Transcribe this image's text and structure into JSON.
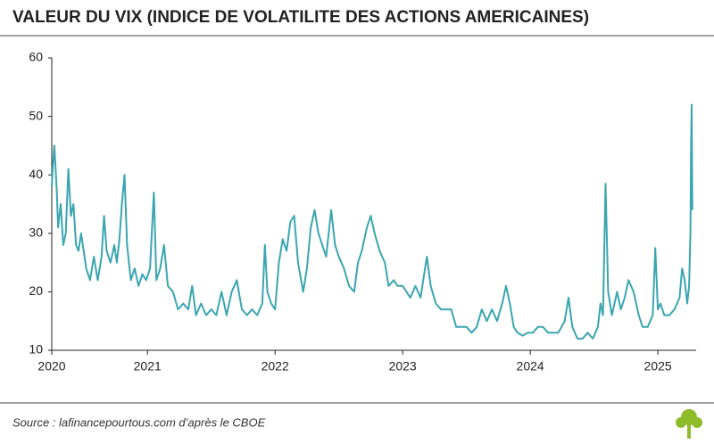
{
  "chart_data": {
    "type": "line",
    "title": "VALEUR DU VIX (INDICE DE VOLATILITE DES ACTIONS AMERICAINES)",
    "source": "Source : lafinancepourtous.com d’après le CBOE",
    "color": "#3ba5b0",
    "xlim": [
      2020.25,
      2025.3
    ],
    "xticks": [
      {
        "value": 2020.25,
        "label": "2020"
      },
      2021,
      2022,
      2023,
      2024,
      2025
    ],
    "ylim": [
      10,
      60
    ],
    "yticks": [
      10,
      20,
      30,
      40,
      50,
      60
    ],
    "grid": false,
    "x": [
      2020.25,
      2020.26,
      2020.27,
      2020.29,
      2020.3,
      2020.32,
      2020.34,
      2020.36,
      2020.38,
      2020.4,
      2020.42,
      2020.44,
      2020.46,
      2020.48,
      2020.52,
      2020.55,
      2020.58,
      2020.61,
      2020.64,
      2020.66,
      2020.68,
      2020.71,
      2020.74,
      2020.76,
      2020.78,
      2020.8,
      2020.82,
      2020.84,
      2020.87,
      2020.9,
      2020.93,
      2020.96,
      2020.99,
      2021.02,
      2021.05,
      2021.07,
      2021.1,
      2021.13,
      2021.16,
      2021.2,
      2021.24,
      2021.28,
      2021.32,
      2021.35,
      2021.38,
      2021.42,
      2021.46,
      2021.5,
      2021.54,
      2021.58,
      2021.62,
      2021.66,
      2021.7,
      2021.74,
      2021.78,
      2021.82,
      2021.86,
      2021.9,
      2021.92,
      2021.94,
      2021.97,
      2022.0,
      2022.03,
      2022.06,
      2022.09,
      2022.12,
      2022.15,
      2022.18,
      2022.22,
      2022.25,
      2022.28,
      2022.31,
      2022.34,
      2022.37,
      2022.4,
      2022.44,
      2022.47,
      2022.5,
      2022.54,
      2022.58,
      2022.62,
      2022.65,
      2022.68,
      2022.72,
      2022.75,
      2022.78,
      2022.82,
      2022.86,
      2022.89,
      2022.93,
      2022.96,
      2023.0,
      2023.03,
      2023.06,
      2023.1,
      2023.14,
      2023.19,
      2023.22,
      2023.26,
      2023.3,
      2023.34,
      2023.38,
      2023.42,
      2023.46,
      2023.5,
      2023.54,
      2023.58,
      2023.62,
      2023.66,
      2023.7,
      2023.74,
      2023.78,
      2023.81,
      2023.84,
      2023.87,
      2023.9,
      2023.94,
      2023.98,
      2024.02,
      2024.06,
      2024.1,
      2024.14,
      2024.18,
      2024.22,
      2024.27,
      2024.3,
      2024.33,
      2024.37,
      2024.41,
      2024.45,
      2024.49,
      2024.53,
      2024.55,
      2024.57,
      2024.59,
      2024.61,
      2024.64,
      2024.68,
      2024.71,
      2024.74,
      2024.77,
      2024.81,
      2024.85,
      2024.88,
      2024.92,
      2024.96,
      2024.98,
      2025.0,
      2025.02,
      2025.05,
      2025.09,
      2025.13,
      2025.17,
      2025.19,
      2025.21,
      2025.23,
      2025.245,
      2025.255,
      2025.26,
      2025.265,
      2025.27
    ],
    "values": [
      38,
      42,
      45,
      37,
      31,
      35,
      28,
      30,
      41,
      33,
      35,
      28,
      27,
      30,
      24,
      22,
      26,
      22,
      26,
      33,
      27,
      25,
      28,
      25,
      29,
      35,
      40,
      28,
      22,
      24,
      21,
      23,
      22,
      24,
      37,
      22,
      24,
      28,
      21,
      20,
      17,
      18,
      17,
      21,
      16,
      18,
      16,
      17,
      16,
      20,
      16,
      20,
      22,
      17,
      16,
      17,
      16,
      18,
      28,
      20,
      18,
      17,
      25,
      29,
      27,
      32,
      33,
      25,
      20,
      24,
      31,
      34,
      30,
      28,
      26,
      34,
      28,
      26,
      24,
      21,
      20,
      25,
      27,
      31,
      33,
      30,
      27,
      25,
      21,
      22,
      21,
      21,
      20,
      19,
      21,
      19,
      26,
      21,
      18,
      17,
      17,
      17,
      14,
      14,
      14,
      13,
      14,
      17,
      15,
      17,
      15,
      18,
      21,
      18,
      14,
      13,
      12.5,
      13,
      13,
      14,
      14,
      13,
      13,
      13,
      15,
      19,
      14,
      12,
      12,
      13,
      12,
      14,
      18,
      16,
      38.5,
      20,
      16,
      20,
      17,
      19,
      22,
      20,
      16,
      14,
      14,
      16,
      27.5,
      17,
      18,
      16,
      16,
      17,
      19,
      24,
      22,
      18,
      21,
      30,
      45,
      52,
      34
    ]
  }
}
